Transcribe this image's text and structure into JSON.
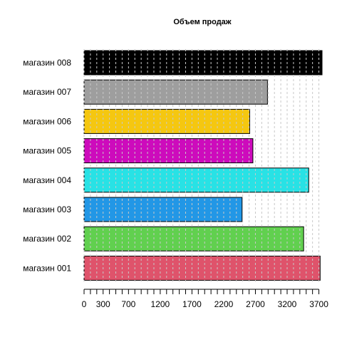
{
  "chart_data": {
    "type": "bar",
    "orientation": "horizontal",
    "title": "Объем продаж",
    "xlabel": "",
    "ylabel": "",
    "categories": [
      "магазин 001",
      "магазин 002",
      "магазин 003",
      "магазин 004",
      "магазин 005",
      "магазин 006",
      "магазин 007",
      "магазин 008"
    ],
    "values": [
      3720,
      3460,
      2490,
      3540,
      2660,
      2610,
      2890,
      3750
    ],
    "colors": [
      "#DF536B",
      "#61D04F",
      "#2297E6",
      "#28E2E5",
      "#CD0BBC",
      "#F5C710",
      "#9E9E9E",
      "#000000"
    ],
    "xlim": [
      0,
      3750
    ],
    "x_ticks": [
      0,
      100,
      200,
      300,
      400,
      500,
      600,
      700,
      800,
      900,
      1000,
      1100,
      1200,
      1300,
      1400,
      1500,
      1600,
      1700,
      1800,
      1900,
      2000,
      2100,
      2200,
      2300,
      2400,
      2500,
      2600,
      2700,
      2800,
      2900,
      3000,
      3100,
      3200,
      3300,
      3400,
      3500,
      3600,
      3700
    ],
    "x_tick_labels": [
      "0",
      "300",
      "700",
      "1200",
      "1700",
      "2200",
      "2700",
      "3200",
      "3700"
    ],
    "x_tick_label_values": [
      0,
      300,
      700,
      1200,
      1700,
      2200,
      2700,
      3200,
      3700
    ],
    "grid": true,
    "grid_style": "dashed",
    "legend": "none"
  }
}
